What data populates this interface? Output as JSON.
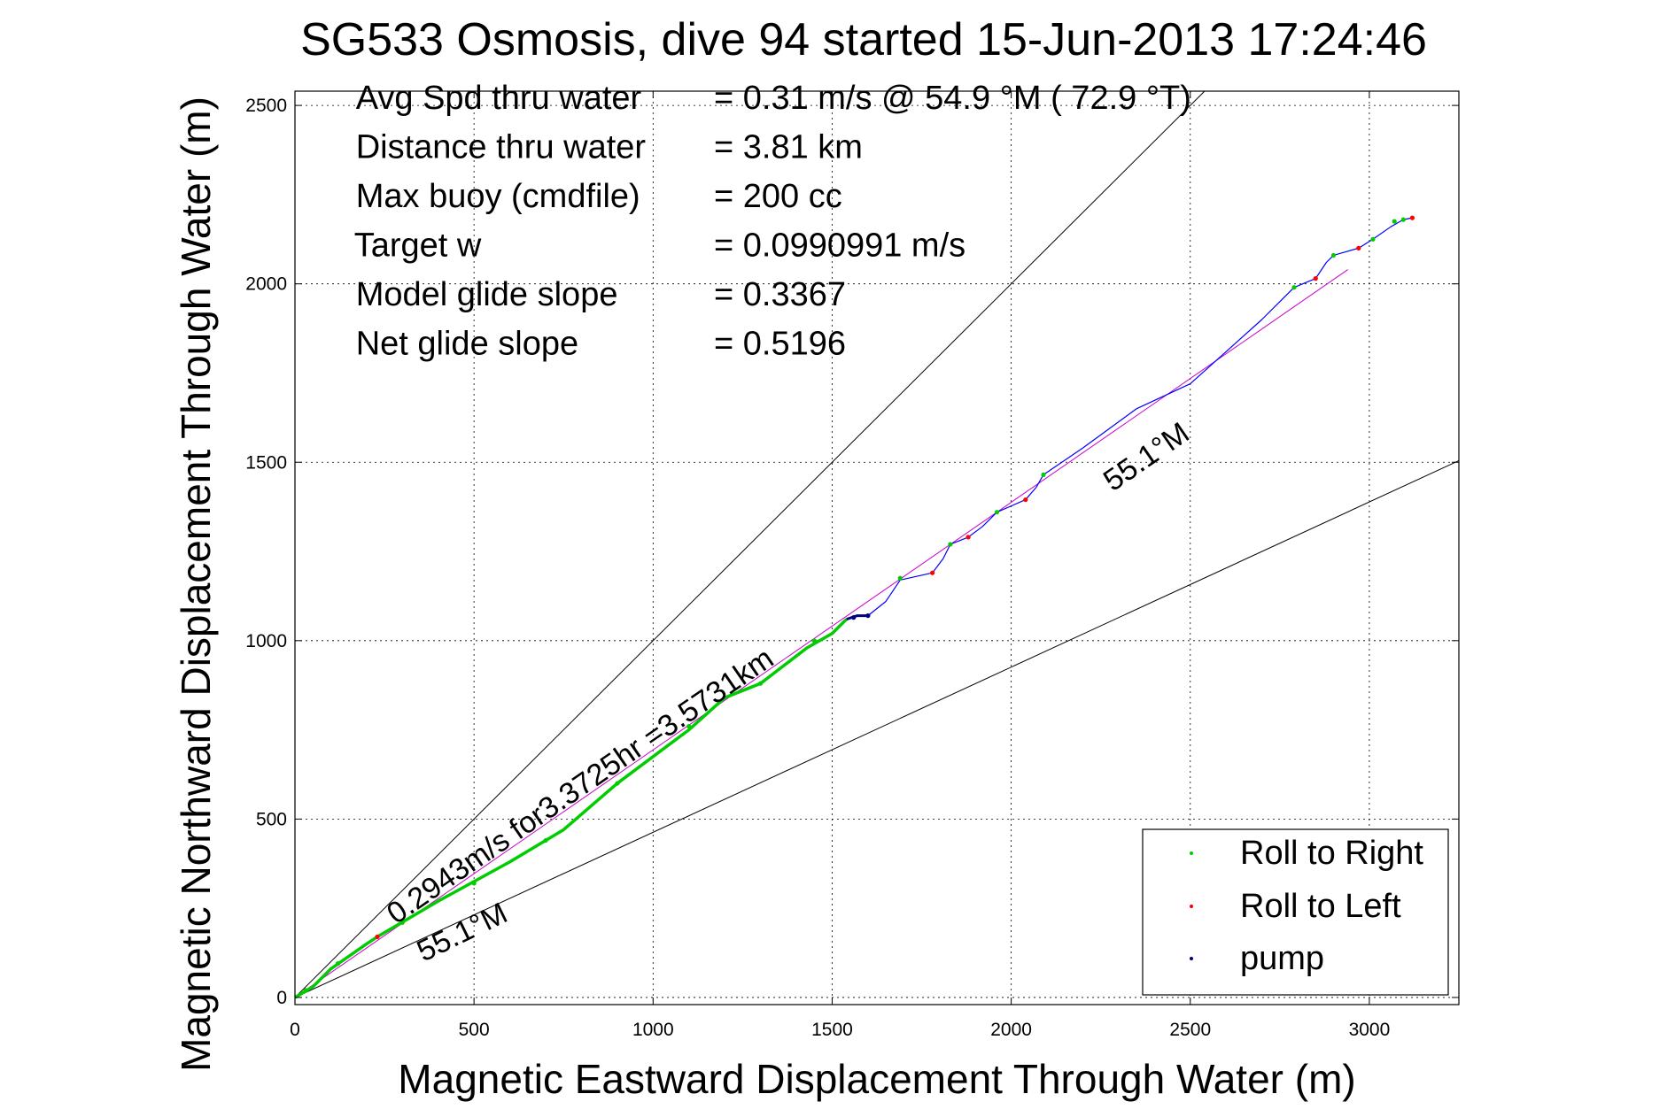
{
  "chart_data": {
    "type": "scatter",
    "title": "SG533 Osmosis, dive 94 started 15-Jun-2013 17:24:46",
    "xlabel": "Magnetic Eastward Displacement Through Water (m)",
    "ylabel": "Magnetic Northward Displacement Through Water (m)",
    "xlim": [
      0,
      3250
    ],
    "ylim": [
      -20,
      2540
    ],
    "xticks": [
      "0",
      "500",
      "1000",
      "1500",
      "2000",
      "2500",
      "3000"
    ],
    "yticks": [
      "0",
      "500",
      "1000",
      "1500",
      "2000",
      "2500"
    ],
    "grid": true,
    "legend_position": "bottom-right",
    "stats": [
      {
        "label": "Avg Spd thru water",
        "value": "=  0.31 m/s @  54.9 °M ( 72.9 °T)"
      },
      {
        "label": "Distance thru water",
        "value": "=  3.81 km"
      },
      {
        "label": "Max buoy (cmdfile)",
        "value": "= 200 cc"
      },
      {
        "label": "Target w",
        "value": "= 0.0990991 m/s"
      },
      {
        "label": "Model glide slope",
        "value": "= 0.3367"
      },
      {
        "label": "Net glide slope",
        "value": "= 0.5196"
      }
    ],
    "annotations": [
      {
        "text": "0.2943m/s for3.3725hr =3.5731km"
      },
      {
        "text": "55.1°M"
      },
      {
        "text": "55.1°M"
      }
    ],
    "guide_lines": [
      {
        "slope": 1.0,
        "color": "#000000"
      },
      {
        "slope": 0.4629,
        "color": "#000000"
      }
    ],
    "heading_line": {
      "from": [
        0,
        0
      ],
      "to": [
        2940,
        2040
      ],
      "color": "#cc00cc"
    },
    "series": [
      {
        "name": "Roll to Right",
        "color": "#00cc00",
        "segment": [
          [
            0,
            0
          ],
          [
            50,
            30
          ],
          [
            100,
            80
          ],
          [
            200,
            150
          ],
          [
            230,
            170
          ],
          [
            400,
            270
          ],
          [
            600,
            380
          ],
          [
            750,
            470
          ],
          [
            900,
            600
          ],
          [
            1100,
            750
          ],
          [
            1200,
            840
          ],
          [
            1300,
            880
          ],
          [
            1430,
            980
          ],
          [
            1500,
            1020
          ],
          [
            1540,
            1060
          ]
        ],
        "points": [
          [
            30,
            20
          ],
          [
            120,
            95
          ],
          [
            300,
            210
          ],
          [
            500,
            320
          ],
          [
            700,
            440
          ],
          [
            900,
            600
          ],
          [
            1100,
            760
          ],
          [
            1300,
            880
          ],
          [
            1450,
            1000
          ],
          [
            1690,
            1175
          ],
          [
            1830,
            1270
          ],
          [
            1960,
            1360
          ],
          [
            2090,
            1465
          ],
          [
            2790,
            1990
          ],
          [
            2900,
            2080
          ],
          [
            3010,
            2125
          ],
          [
            3070,
            2175
          ],
          [
            3095,
            2180
          ]
        ]
      },
      {
        "name": "Roll to Left",
        "color": "#ff0000",
        "points": [
          [
            230,
            170
          ],
          [
            1780,
            1190
          ],
          [
            1880,
            1290
          ],
          [
            2040,
            1395
          ],
          [
            2850,
            2015
          ],
          [
            2970,
            2100
          ],
          [
            3120,
            2185
          ]
        ]
      },
      {
        "name": "pump",
        "color": "#000080",
        "segment": [
          [
            1540,
            1060
          ],
          [
            1570,
            1070
          ],
          [
            1600,
            1070
          ]
        ],
        "points": [
          [
            1560,
            1065
          ],
          [
            1600,
            1070
          ]
        ]
      }
    ],
    "track": {
      "color": "#0000ff",
      "points": [
        [
          1600,
          1070
        ],
        [
          1650,
          1110
        ],
        [
          1690,
          1170
        ],
        [
          1780,
          1190
        ],
        [
          1810,
          1230
        ],
        [
          1830,
          1270
        ],
        [
          1880,
          1290
        ],
        [
          1920,
          1320
        ],
        [
          1960,
          1360
        ],
        [
          2040,
          1395
        ],
        [
          2070,
          1430
        ],
        [
          2090,
          1465
        ],
        [
          2200,
          1540
        ],
        [
          2350,
          1650
        ],
        [
          2500,
          1720
        ],
        [
          2600,
          1810
        ],
        [
          2700,
          1900
        ],
        [
          2790,
          1990
        ],
        [
          2850,
          2015
        ],
        [
          2880,
          2060
        ],
        [
          2900,
          2080
        ],
        [
          2970,
          2100
        ],
        [
          3010,
          2125
        ],
        [
          3060,
          2160
        ],
        [
          3095,
          2180
        ],
        [
          3120,
          2185
        ]
      ]
    }
  }
}
